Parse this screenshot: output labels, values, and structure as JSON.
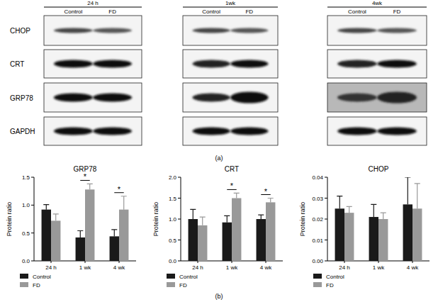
{
  "blot_panel": {
    "caption": "(a)",
    "proteins": [
      "CHOP",
      "CRT",
      "GRP78",
      "GAPDH"
    ],
    "groups": [
      {
        "label": "24 h",
        "lanes": [
          "Control",
          "FD"
        ]
      },
      {
        "label": "1wk",
        "lanes": [
          "Control",
          "FD"
        ]
      },
      {
        "label": "4wk",
        "lanes": [
          "Control",
          "FD"
        ]
      }
    ]
  },
  "panel_b_caption": "(b)",
  "chart_data": [
    {
      "type": "bar",
      "title": "GRP78",
      "y_label": "Protein ratio",
      "categories": [
        "24 h",
        "1 wk",
        "4 wk"
      ],
      "series": [
        {
          "name": "Control",
          "color": "#1a1a1a",
          "values": [
            0.92,
            0.42,
            0.44
          ],
          "errors": [
            0.09,
            0.12,
            0.12
          ]
        },
        {
          "name": "FD",
          "color": "#999999",
          "values": [
            0.72,
            1.28,
            0.92
          ],
          "errors": [
            0.12,
            0.1,
            0.24
          ]
        }
      ],
      "ylim": [
        0,
        1.5
      ],
      "yticks": [
        {
          "value": 0,
          "label": "0.0"
        },
        0.5,
        {
          "value": 1,
          "label": "1.0"
        },
        1.5
      ],
      "legend": "bottom",
      "annotations": [
        {
          "text": "*",
          "category": "1 wk"
        },
        {
          "text": "*",
          "category": "4 wk"
        }
      ]
    },
    {
      "type": "bar",
      "title": "CRT",
      "y_label": "Protein ratio",
      "categories": [
        "24 h",
        "1 wk",
        "4 wk"
      ],
      "series": [
        {
          "name": "Control",
          "color": "#1a1a1a",
          "values": [
            1.0,
            0.92,
            1.0
          ],
          "errors": [
            0.23,
            0.16,
            0.1
          ]
        },
        {
          "name": "FD",
          "color": "#999999",
          "values": [
            0.85,
            1.5,
            1.4
          ],
          "errors": [
            0.2,
            0.12,
            0.1
          ]
        }
      ],
      "ylim": [
        0,
        2
      ],
      "yticks": [
        {
          "value": 0,
          "label": "0.0"
        },
        0.5,
        {
          "value": 1,
          "label": "1.0"
        },
        1.5,
        {
          "value": 2,
          "label": "2.0"
        }
      ],
      "legend": "bottom",
      "annotations": [
        {
          "text": "*",
          "category": "1 wk"
        },
        {
          "text": "*",
          "category": "4 wk"
        }
      ]
    },
    {
      "type": "bar",
      "title": "CHOP",
      "y_label": "Protein ratio",
      "categories": [
        "24 h",
        "1 wk",
        "4 wk"
      ],
      "series": [
        {
          "name": "Control",
          "color": "#1a1a1a",
          "values": [
            0.025,
            0.021,
            0.027
          ],
          "errors": [
            0.006,
            0.006,
            0.013
          ]
        },
        {
          "name": "FD",
          "color": "#999999",
          "values": [
            0.023,
            0.02,
            0.025
          ],
          "errors": [
            0.003,
            0.003,
            0.012
          ]
        }
      ],
      "ylim": [
        0,
        0.04
      ],
      "yticks": [
        {
          "value": 0,
          "label": "0.00"
        },
        0.01,
        0.02,
        0.03,
        0.04
      ],
      "legend": "bottom",
      "annotations": []
    }
  ]
}
